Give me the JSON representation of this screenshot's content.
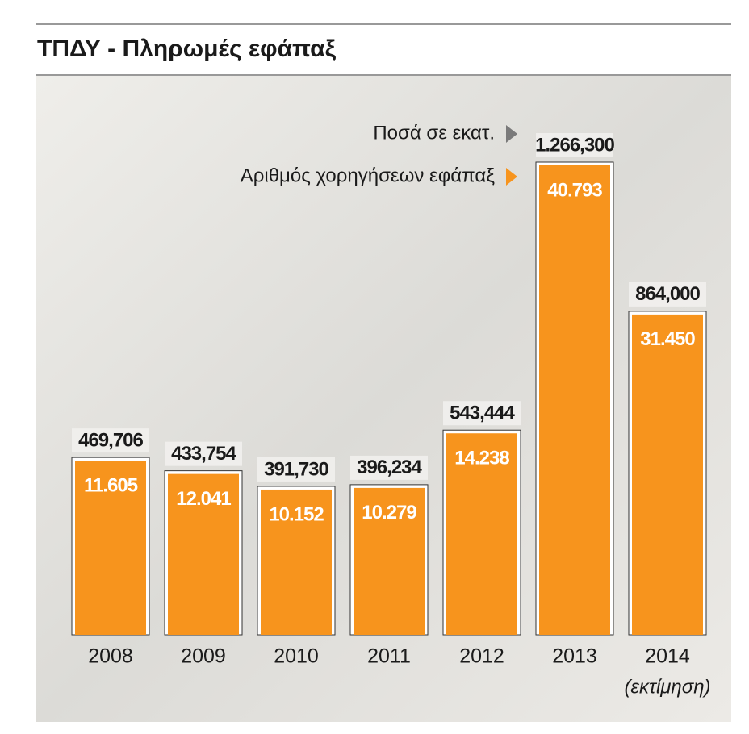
{
  "chart_data": {
    "type": "bar",
    "title": "ΤΠΔΥ - Πληρωμές εφάπαξ",
    "categories": [
      "2008",
      "2009",
      "2010",
      "2011",
      "2012",
      "2013",
      "2014"
    ],
    "annotation": "(εκτίμηση)",
    "series": [
      {
        "name": "Ποσά σε εκατ.",
        "color": "#7a7a7a",
        "values": [
          469.706,
          433.754,
          391.73,
          396.234,
          543.444,
          1266.3,
          864
        ],
        "value_labels": [
          "469,706",
          "433,754",
          "391,730",
          "396,234",
          "543,444",
          "1.266,300",
          "864,000"
        ]
      },
      {
        "name": "Αριθμός χορηγήσεων εφάπαξ",
        "color": "#f7941d",
        "values": [
          11605,
          12041,
          10152,
          10279,
          14238,
          40793,
          31450
        ],
        "value_labels": [
          "11.605",
          "12.041",
          "10.152",
          "10.279",
          "14.238",
          "40.793",
          "31.450"
        ]
      }
    ]
  }
}
